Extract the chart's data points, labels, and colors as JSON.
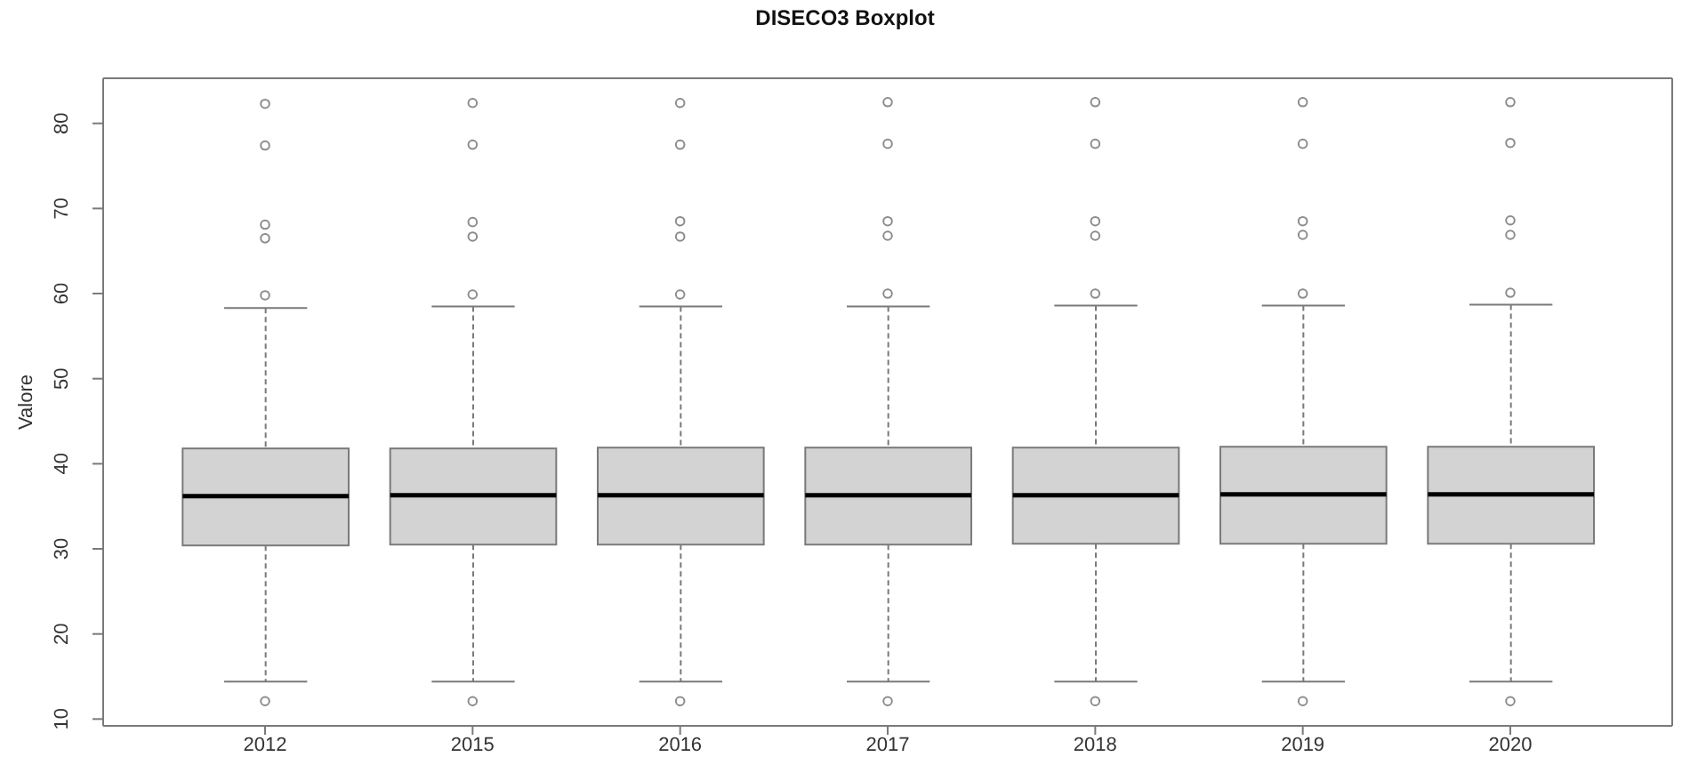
{
  "chart_data": {
    "type": "box",
    "title": "DISECO3 Boxplot",
    "ylabel": "Valore",
    "categories": [
      "2012",
      "2015",
      "2016",
      "2017",
      "2018",
      "2019",
      "2020"
    ],
    "series": [
      {
        "color": "#d3d3d3",
        "boxes": [
          {
            "low": 14.4,
            "q1": 30.4,
            "median": 36.2,
            "q3": 41.8,
            "high": 58.3,
            "outliers": [
              82.3,
              77.4,
              68.1,
              66.5,
              59.8,
              12.1
            ]
          },
          {
            "low": 14.4,
            "q1": 30.5,
            "median": 36.3,
            "q3": 41.8,
            "high": 58.5,
            "outliers": [
              82.4,
              77.5,
              68.4,
              66.7,
              59.9,
              12.1
            ]
          },
          {
            "low": 14.4,
            "q1": 30.5,
            "median": 36.3,
            "q3": 41.9,
            "high": 58.5,
            "outliers": [
              82.4,
              77.5,
              68.5,
              66.7,
              59.9,
              12.1
            ]
          },
          {
            "low": 14.4,
            "q1": 30.5,
            "median": 36.3,
            "q3": 41.9,
            "high": 58.5,
            "outliers": [
              82.5,
              77.6,
              68.5,
              66.8,
              60.0,
              12.1
            ]
          },
          {
            "low": 14.4,
            "q1": 30.6,
            "median": 36.3,
            "q3": 41.9,
            "high": 58.6,
            "outliers": [
              82.5,
              77.6,
              68.5,
              66.8,
              60.0,
              12.1
            ]
          },
          {
            "low": 14.4,
            "q1": 30.6,
            "median": 36.4,
            "q3": 42.0,
            "high": 58.6,
            "outliers": [
              82.5,
              77.6,
              68.5,
              66.9,
              60.0,
              12.1
            ]
          },
          {
            "low": 14.4,
            "q1": 30.6,
            "median": 36.4,
            "q3": 42.0,
            "high": 58.7,
            "outliers": [
              82.5,
              77.7,
              68.6,
              66.9,
              60.1,
              12.1
            ]
          }
        ]
      }
    ],
    "ylim": [
      9.2,
      85.3
    ],
    "yticks": [
      10,
      20,
      30,
      40,
      50,
      60,
      70,
      80
    ]
  }
}
